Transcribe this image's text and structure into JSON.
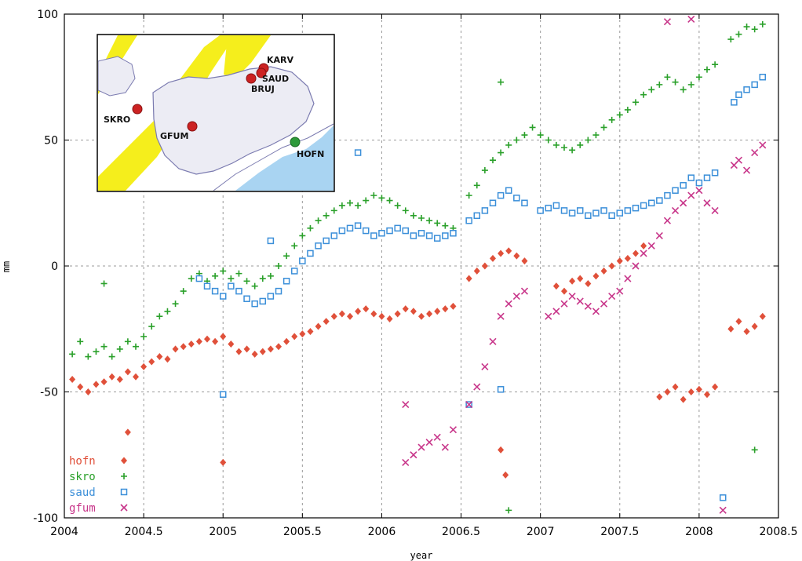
{
  "chart_data": {
    "type": "scatter",
    "xlabel": "year",
    "ylabel": "mm",
    "xlim": [
      2004,
      2008.5
    ],
    "ylim": [
      -100,
      100
    ],
    "x_ticks": [
      "2004",
      "2004.5",
      "2005",
      "2005.5",
      "2006",
      "2006.5",
      "2007",
      "2007.5",
      "2008",
      "2008.5"
    ],
    "y_ticks": [
      "-100",
      "-50",
      "0",
      "50",
      "100"
    ],
    "grid": true,
    "legend_position": "bottom-left",
    "series": [
      {
        "name": "hofn",
        "color": "#e0503a",
        "marker": "diamond",
        "points": [
          [
            2004.05,
            -45
          ],
          [
            2004.1,
            -48
          ],
          [
            2004.15,
            -50
          ],
          [
            2004.2,
            -47
          ],
          [
            2004.25,
            -46
          ],
          [
            2004.3,
            -44
          ],
          [
            2004.35,
            -45
          ],
          [
            2004.4,
            -42
          ],
          [
            2004.45,
            -44
          ],
          [
            2004.5,
            -40
          ],
          [
            2004.55,
            -38
          ],
          [
            2004.6,
            -36
          ],
          [
            2004.65,
            -37
          ],
          [
            2004.7,
            -33
          ],
          [
            2004.75,
            -32
          ],
          [
            2004.8,
            -31
          ],
          [
            2004.85,
            -30
          ],
          [
            2004.9,
            -29
          ],
          [
            2004.95,
            -30
          ],
          [
            2005.0,
            -28
          ],
          [
            2005.05,
            -31
          ],
          [
            2005.1,
            -34
          ],
          [
            2005.15,
            -33
          ],
          [
            2005.2,
            -35
          ],
          [
            2005.25,
            -34
          ],
          [
            2005.3,
            -33
          ],
          [
            2005.35,
            -32
          ],
          [
            2005.4,
            -30
          ],
          [
            2005.45,
            -28
          ],
          [
            2005.5,
            -27
          ],
          [
            2005.55,
            -26
          ],
          [
            2005.6,
            -24
          ],
          [
            2005.65,
            -22
          ],
          [
            2005.7,
            -20
          ],
          [
            2005.75,
            -19
          ],
          [
            2005.8,
            -20
          ],
          [
            2005.85,
            -18
          ],
          [
            2005.9,
            -17
          ],
          [
            2005.95,
            -19
          ],
          [
            2006.0,
            -20
          ],
          [
            2006.05,
            -21
          ],
          [
            2006.1,
            -19
          ],
          [
            2006.15,
            -17
          ],
          [
            2006.2,
            -18
          ],
          [
            2006.25,
            -20
          ],
          [
            2006.3,
            -19
          ],
          [
            2006.35,
            -18
          ],
          [
            2006.4,
            -17
          ],
          [
            2006.45,
            -16
          ],
          [
            2006.55,
            -5
          ],
          [
            2006.6,
            -2
          ],
          [
            2006.65,
            0
          ],
          [
            2006.7,
            3
          ],
          [
            2006.75,
            5
          ],
          [
            2006.8,
            6
          ],
          [
            2006.85,
            4
          ],
          [
            2006.9,
            2
          ],
          [
            2007.1,
            -8
          ],
          [
            2007.15,
            -10
          ],
          [
            2007.2,
            -6
          ],
          [
            2007.25,
            -5
          ],
          [
            2007.3,
            -7
          ],
          [
            2007.35,
            -4
          ],
          [
            2007.4,
            -2
          ],
          [
            2007.45,
            0
          ],
          [
            2007.5,
            2
          ],
          [
            2007.55,
            3
          ],
          [
            2007.6,
            5
          ],
          [
            2007.65,
            8
          ],
          [
            2007.75,
            -52
          ],
          [
            2007.8,
            -50
          ],
          [
            2007.85,
            -48
          ],
          [
            2007.9,
            -53
          ],
          [
            2007.95,
            -50
          ],
          [
            2008.0,
            -49
          ],
          [
            2008.05,
            -51
          ],
          [
            2008.1,
            -48
          ],
          [
            2008.2,
            -25
          ],
          [
            2008.25,
            -22
          ],
          [
            2008.3,
            -26
          ],
          [
            2008.35,
            -24
          ],
          [
            2008.4,
            -20
          ],
          [
            2004.4,
            -66
          ],
          [
            2005.0,
            -78
          ],
          [
            2006.75,
            -73
          ],
          [
            2006.78,
            -83
          ]
        ]
      },
      {
        "name": "skro",
        "color": "#2aa02a",
        "marker": "plus",
        "points": [
          [
            2004.05,
            -35
          ],
          [
            2004.1,
            -30
          ],
          [
            2004.15,
            -36
          ],
          [
            2004.2,
            -34
          ],
          [
            2004.25,
            -32
          ],
          [
            2004.3,
            -36
          ],
          [
            2004.35,
            -33
          ],
          [
            2004.4,
            -30
          ],
          [
            2004.45,
            -32
          ],
          [
            2004.5,
            -28
          ],
          [
            2004.55,
            -24
          ],
          [
            2004.6,
            -20
          ],
          [
            2004.65,
            -18
          ],
          [
            2004.7,
            -15
          ],
          [
            2004.75,
            -10
          ],
          [
            2004.8,
            -5
          ],
          [
            2004.85,
            -3
          ],
          [
            2004.9,
            -6
          ],
          [
            2004.95,
            -4
          ],
          [
            2005.0,
            -2
          ],
          [
            2005.05,
            -5
          ],
          [
            2005.1,
            -3
          ],
          [
            2005.15,
            -6
          ],
          [
            2005.2,
            -8
          ],
          [
            2005.25,
            -5
          ],
          [
            2005.3,
            -4
          ],
          [
            2005.35,
            0
          ],
          [
            2005.4,
            4
          ],
          [
            2005.45,
            8
          ],
          [
            2005.5,
            12
          ],
          [
            2005.55,
            15
          ],
          [
            2005.6,
            18
          ],
          [
            2005.65,
            20
          ],
          [
            2005.7,
            22
          ],
          [
            2005.75,
            24
          ],
          [
            2005.8,
            25
          ],
          [
            2005.85,
            24
          ],
          [
            2005.9,
            26
          ],
          [
            2005.95,
            28
          ],
          [
            2006.0,
            27
          ],
          [
            2006.05,
            26
          ],
          [
            2006.1,
            24
          ],
          [
            2006.15,
            22
          ],
          [
            2006.2,
            20
          ],
          [
            2006.25,
            19
          ],
          [
            2006.3,
            18
          ],
          [
            2006.35,
            17
          ],
          [
            2006.4,
            16
          ],
          [
            2006.45,
            15
          ],
          [
            2006.55,
            28
          ],
          [
            2006.6,
            32
          ],
          [
            2006.65,
            38
          ],
          [
            2006.7,
            42
          ],
          [
            2006.75,
            45
          ],
          [
            2006.8,
            48
          ],
          [
            2006.85,
            50
          ],
          [
            2006.9,
            52
          ],
          [
            2006.95,
            55
          ],
          [
            2007.0,
            52
          ],
          [
            2007.05,
            50
          ],
          [
            2007.1,
            48
          ],
          [
            2007.15,
            47
          ],
          [
            2007.2,
            46
          ],
          [
            2007.25,
            48
          ],
          [
            2007.3,
            50
          ],
          [
            2007.35,
            52
          ],
          [
            2007.4,
            55
          ],
          [
            2007.45,
            58
          ],
          [
            2007.5,
            60
          ],
          [
            2007.55,
            62
          ],
          [
            2007.6,
            65
          ],
          [
            2007.65,
            68
          ],
          [
            2007.7,
            70
          ],
          [
            2007.75,
            72
          ],
          [
            2007.8,
            75
          ],
          [
            2007.85,
            73
          ],
          [
            2007.9,
            70
          ],
          [
            2007.95,
            72
          ],
          [
            2008.0,
            75
          ],
          [
            2008.05,
            78
          ],
          [
            2008.1,
            80
          ],
          [
            2008.2,
            90
          ],
          [
            2008.25,
            92
          ],
          [
            2008.3,
            95
          ],
          [
            2008.35,
            94
          ],
          [
            2008.4,
            96
          ],
          [
            2004.25,
            -7
          ],
          [
            2006.8,
            -97
          ],
          [
            2006.75,
            73
          ],
          [
            2008.35,
            -73
          ]
        ]
      },
      {
        "name": "saud",
        "color": "#3b8fd9",
        "marker": "square",
        "points": [
          [
            2004.85,
            -5
          ],
          [
            2004.9,
            -8
          ],
          [
            2004.95,
            -10
          ],
          [
            2005.0,
            -12
          ],
          [
            2005.05,
            -8
          ],
          [
            2005.1,
            -10
          ],
          [
            2005.15,
            -13
          ],
          [
            2005.2,
            -15
          ],
          [
            2005.25,
            -14
          ],
          [
            2005.3,
            -12
          ],
          [
            2005.35,
            -10
          ],
          [
            2005.4,
            -6
          ],
          [
            2005.45,
            -2
          ],
          [
            2005.5,
            2
          ],
          [
            2005.55,
            5
          ],
          [
            2005.6,
            8
          ],
          [
            2005.65,
            10
          ],
          [
            2005.7,
            12
          ],
          [
            2005.75,
            14
          ],
          [
            2005.8,
            15
          ],
          [
            2005.85,
            16
          ],
          [
            2005.9,
            14
          ],
          [
            2005.95,
            12
          ],
          [
            2006.0,
            13
          ],
          [
            2006.05,
            14
          ],
          [
            2006.1,
            15
          ],
          [
            2006.15,
            14
          ],
          [
            2006.2,
            12
          ],
          [
            2006.25,
            13
          ],
          [
            2006.3,
            12
          ],
          [
            2006.35,
            11
          ],
          [
            2006.4,
            12
          ],
          [
            2006.45,
            13
          ],
          [
            2006.55,
            18
          ],
          [
            2006.6,
            20
          ],
          [
            2006.65,
            22
          ],
          [
            2006.7,
            25
          ],
          [
            2006.75,
            28
          ],
          [
            2006.8,
            30
          ],
          [
            2006.85,
            27
          ],
          [
            2006.9,
            25
          ],
          [
            2007.0,
            22
          ],
          [
            2007.05,
            23
          ],
          [
            2007.1,
            24
          ],
          [
            2007.15,
            22
          ],
          [
            2007.2,
            21
          ],
          [
            2007.25,
            22
          ],
          [
            2007.3,
            20
          ],
          [
            2007.35,
            21
          ],
          [
            2007.4,
            22
          ],
          [
            2007.45,
            20
          ],
          [
            2007.5,
            21
          ],
          [
            2007.55,
            22
          ],
          [
            2007.6,
            23
          ],
          [
            2007.65,
            24
          ],
          [
            2007.7,
            25
          ],
          [
            2007.75,
            26
          ],
          [
            2007.8,
            28
          ],
          [
            2007.85,
            30
          ],
          [
            2007.9,
            32
          ],
          [
            2007.95,
            35
          ],
          [
            2008.0,
            33
          ],
          [
            2008.05,
            35
          ],
          [
            2008.1,
            37
          ],
          [
            2008.22,
            65
          ],
          [
            2008.25,
            68
          ],
          [
            2008.3,
            70
          ],
          [
            2008.35,
            72
          ],
          [
            2008.4,
            75
          ],
          [
            2005.85,
            45
          ],
          [
            2005.3,
            10
          ],
          [
            2005.0,
            -51
          ],
          [
            2006.75,
            -49
          ],
          [
            2008.15,
            -92
          ],
          [
            2006.55,
            -55
          ]
        ]
      },
      {
        "name": "gfum",
        "color": "#c8368a",
        "marker": "cross",
        "points": [
          [
            2006.15,
            -78
          ],
          [
            2006.2,
            -75
          ],
          [
            2006.25,
            -72
          ],
          [
            2006.3,
            -70
          ],
          [
            2006.35,
            -68
          ],
          [
            2006.4,
            -72
          ],
          [
            2006.45,
            -65
          ],
          [
            2006.55,
            -55
          ],
          [
            2006.6,
            -48
          ],
          [
            2006.65,
            -40
          ],
          [
            2006.7,
            -30
          ],
          [
            2006.75,
            -20
          ],
          [
            2006.8,
            -15
          ],
          [
            2006.85,
            -12
          ],
          [
            2006.9,
            -10
          ],
          [
            2007.05,
            -20
          ],
          [
            2007.1,
            -18
          ],
          [
            2007.15,
            -15
          ],
          [
            2007.2,
            -12
          ],
          [
            2007.25,
            -14
          ],
          [
            2007.3,
            -16
          ],
          [
            2007.35,
            -18
          ],
          [
            2007.4,
            -15
          ],
          [
            2007.45,
            -12
          ],
          [
            2007.5,
            -10
          ],
          [
            2007.55,
            -5
          ],
          [
            2007.6,
            0
          ],
          [
            2007.65,
            5
          ],
          [
            2007.7,
            8
          ],
          [
            2007.75,
            12
          ],
          [
            2007.8,
            18
          ],
          [
            2007.85,
            22
          ],
          [
            2007.9,
            25
          ],
          [
            2007.95,
            28
          ],
          [
            2008.0,
            30
          ],
          [
            2008.05,
            25
          ],
          [
            2008.1,
            22
          ],
          [
            2008.22,
            40
          ],
          [
            2008.25,
            42
          ],
          [
            2008.3,
            38
          ],
          [
            2008.35,
            45
          ],
          [
            2008.4,
            48
          ],
          [
            2007.8,
            97
          ],
          [
            2007.95,
            98
          ],
          [
            2008.15,
            -97
          ],
          [
            2006.15,
            -55
          ]
        ]
      }
    ]
  },
  "inset_map": {
    "stations": [
      {
        "name": "KARV",
        "color": "#cc2222"
      },
      {
        "name": "SAUD",
        "color": "#cc2222"
      },
      {
        "name": "BRUJ",
        "color": "#cc2222"
      },
      {
        "name": "SKRO",
        "color": "#cc2222"
      },
      {
        "name": "GFUM",
        "color": "#cc2222"
      },
      {
        "name": "HOFN",
        "color": "#2e9a3a"
      }
    ]
  }
}
